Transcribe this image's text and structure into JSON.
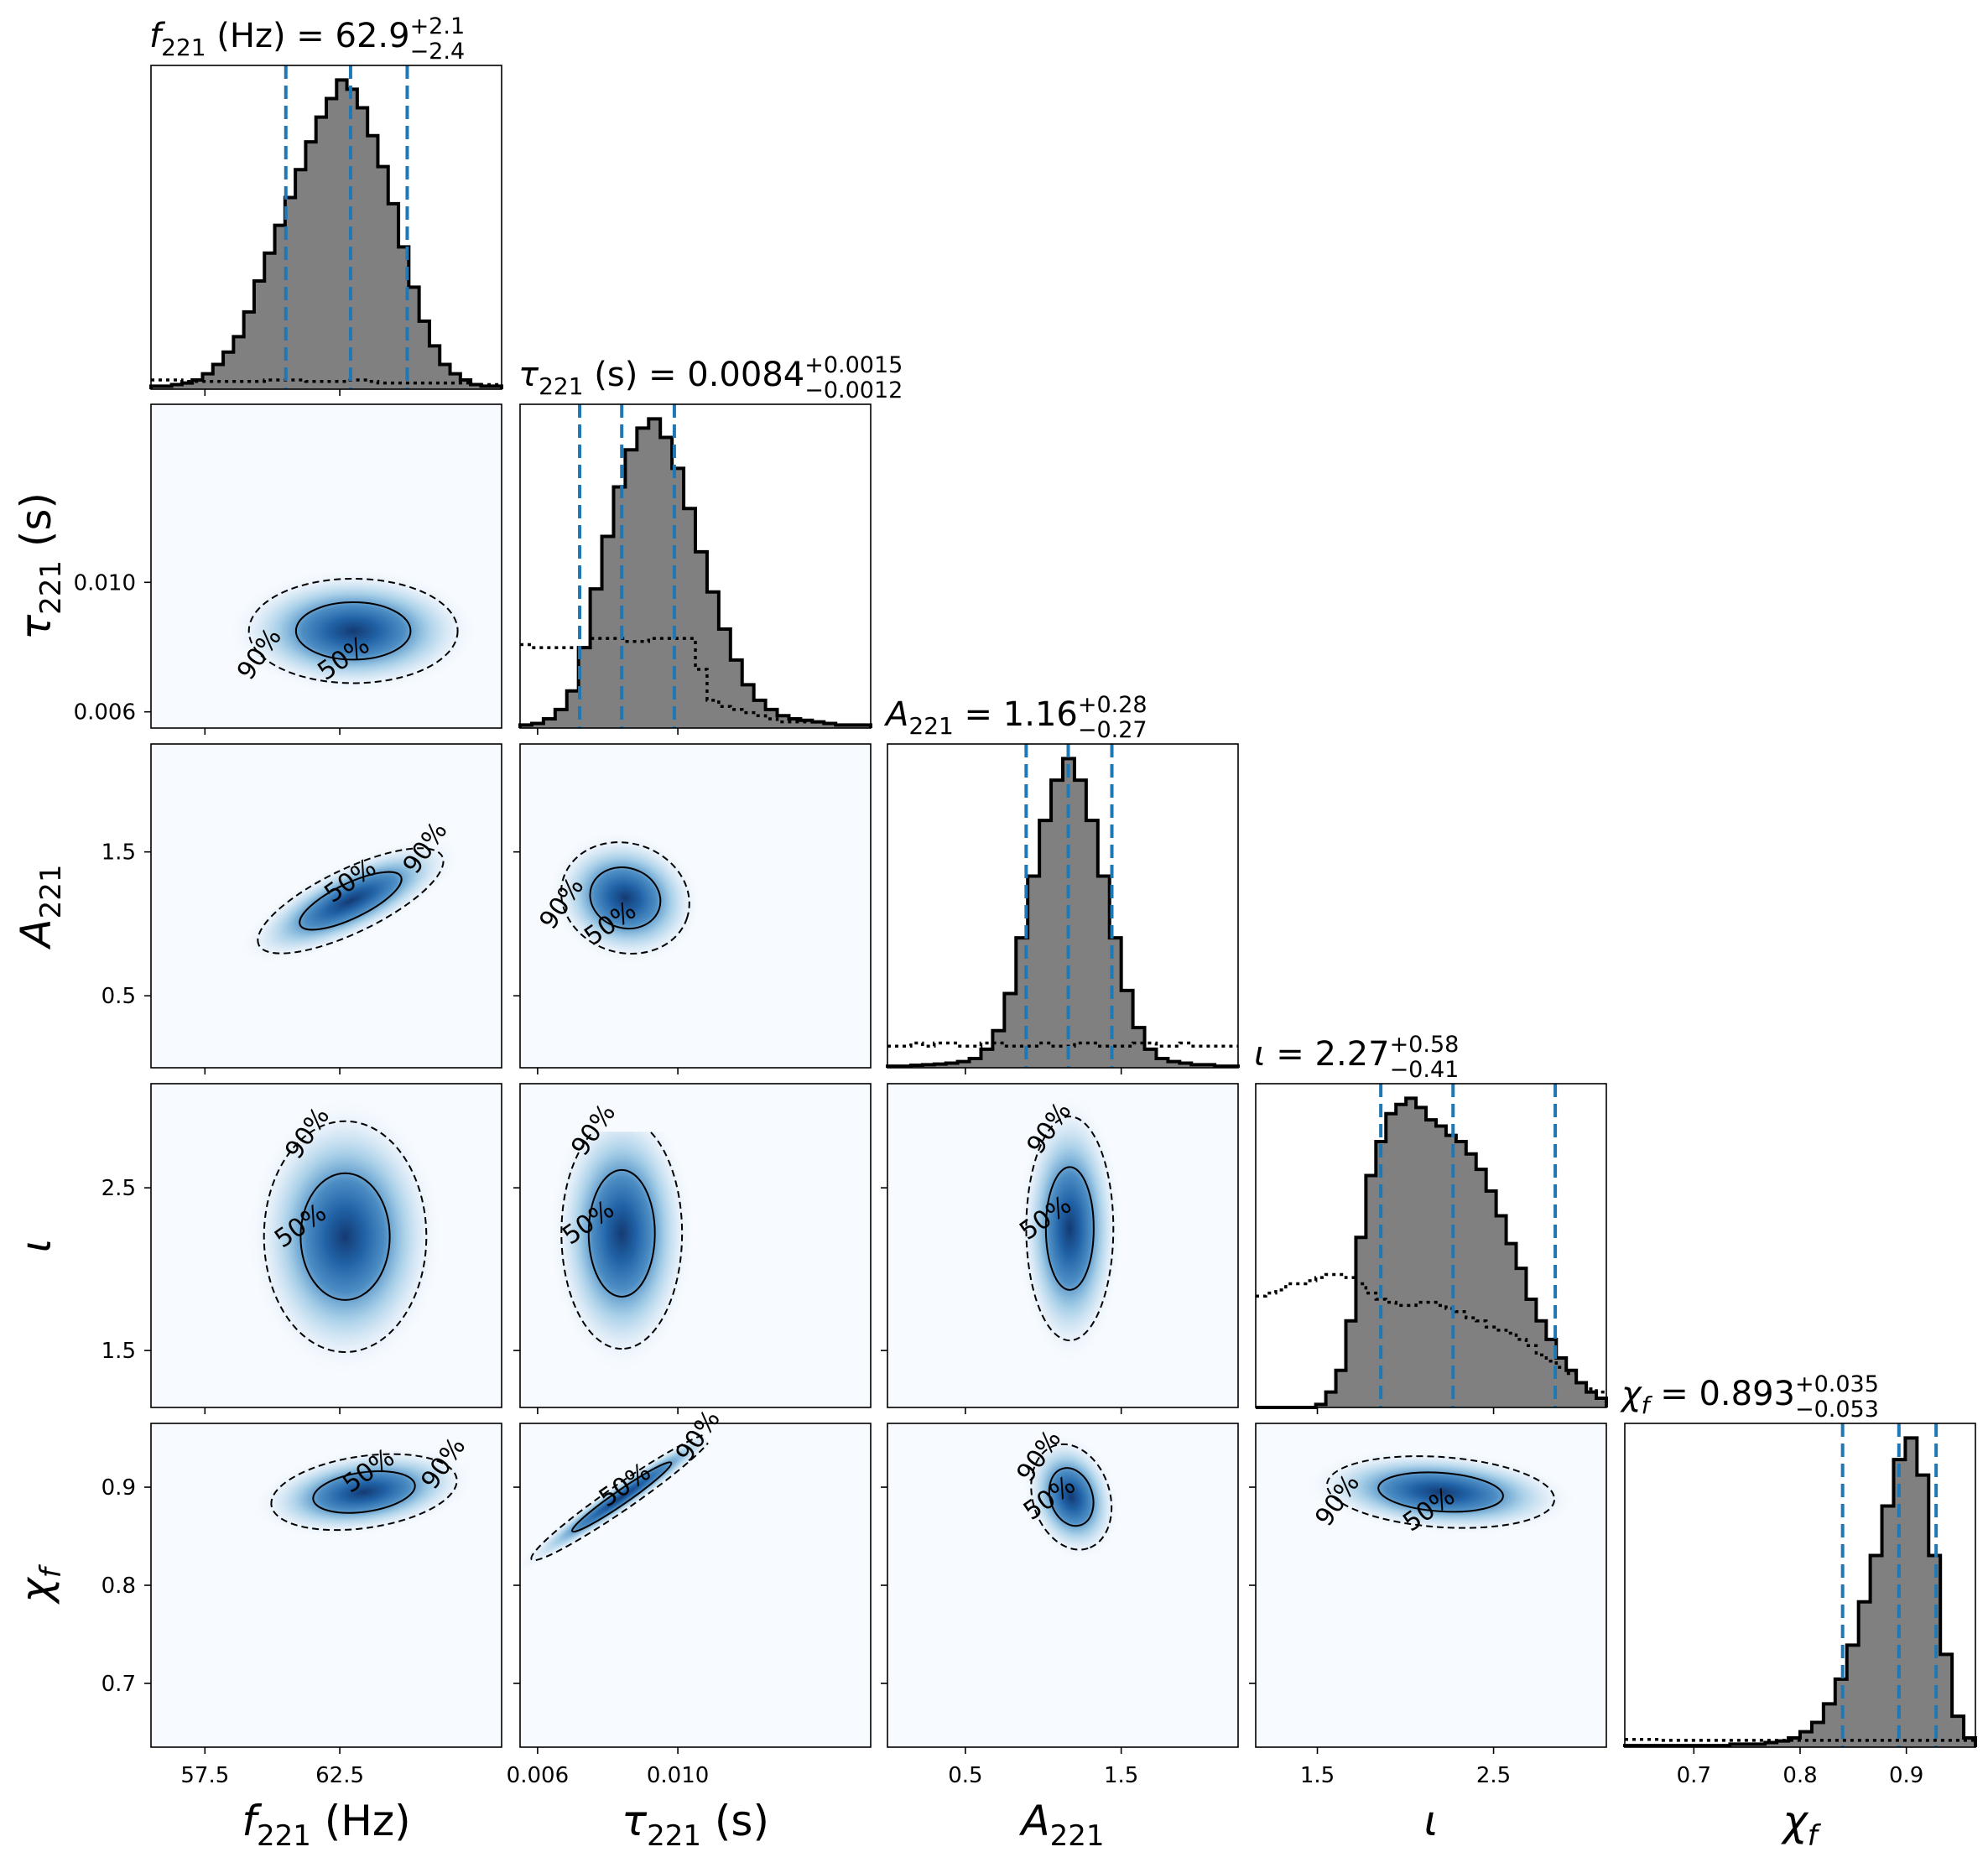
{
  "chart_data": {
    "type": "corner",
    "parameters": [
      {
        "name": "f221 (Hz)",
        "label_main": "f",
        "label_sub": "221",
        "label_suffix": " (Hz)",
        "title_prefix": "f",
        "title_sub": "221",
        "title_suffix": " (Hz) = ",
        "median": "62.9",
        "plus": "+2.1",
        "minus": "−2.4",
        "range": [
          55.5,
          68.5
        ],
        "ticks": [
          57.5,
          62.5
        ],
        "tick_labels": [
          "57.5",
          "62.5"
        ],
        "quantiles": [
          60.5,
          62.9,
          65.0
        ],
        "posterior": [
          0.01,
          0.01,
          0.015,
          0.02,
          0.03,
          0.05,
          0.08,
          0.12,
          0.17,
          0.25,
          0.35,
          0.44,
          0.53,
          0.62,
          0.71,
          0.8,
          0.88,
          0.94,
          1.0,
          0.97,
          0.91,
          0.82,
          0.72,
          0.6,
          0.46,
          0.33,
          0.22,
          0.14,
          0.08,
          0.05,
          0.03,
          0.015,
          0.01,
          0.01
        ],
        "prior": [
          0.03,
          0.03,
          0.03,
          0.025,
          0.025,
          0.025,
          0.025,
          0.025,
          0.025,
          0.025,
          0.025,
          0.03,
          0.03,
          0.03,
          0.03,
          0.025,
          0.025,
          0.025,
          0.025,
          0.03,
          0.03,
          0.025,
          0.02,
          0.02,
          0.02,
          0.02,
          0.02,
          0.02,
          0.02,
          0.02,
          0.02,
          0.015,
          0.015,
          0.015
        ]
      },
      {
        "name": "tau221 (s)",
        "label_main": "τ",
        "label_sub": "221",
        "label_suffix": " (s)",
        "title_prefix": "τ",
        "title_sub": "221",
        "title_suffix": " (s) = ",
        "median": "0.0084",
        "plus": "+0.0015",
        "minus": "−0.0012",
        "range": [
          0.0055,
          0.0155
        ],
        "ticks": [
          0.006,
          0.01
        ],
        "tick_labels": [
          "0.006",
          "0.010"
        ],
        "quantiles": [
          0.0072,
          0.0084,
          0.0099
        ],
        "posterior": [
          0.01,
          0.015,
          0.03,
          0.06,
          0.12,
          0.26,
          0.45,
          0.62,
          0.78,
          0.9,
          0.97,
          1.0,
          0.94,
          0.84,
          0.71,
          0.57,
          0.44,
          0.32,
          0.22,
          0.14,
          0.09,
          0.06,
          0.04,
          0.03,
          0.025,
          0.02,
          0.015,
          0.01,
          0.01,
          0.01
        ],
        "prior": [
          0.27,
          0.26,
          0.26,
          0.26,
          0.26,
          0.26,
          0.29,
          0.29,
          0.29,
          0.28,
          0.28,
          0.29,
          0.29,
          0.29,
          0.29,
          0.19,
          0.09,
          0.07,
          0.06,
          0.05,
          0.04,
          0.03,
          0.02,
          0.02,
          0.02,
          0.02,
          0.015,
          0.01,
          0.01,
          0.01
        ]
      },
      {
        "name": "A221",
        "label_main": "A",
        "label_sub": "221",
        "label_suffix": "",
        "title_prefix": "A",
        "title_sub": "221",
        "title_suffix": " = ",
        "median": "1.16",
        "plus": "+0.28",
        "minus": "−0.27",
        "range": [
          0.0,
          2.25
        ],
        "ticks": [
          0.5,
          1.5
        ],
        "tick_labels": [
          "0.5",
          "1.5"
        ],
        "quantiles": [
          0.89,
          1.16,
          1.44
        ],
        "posterior": [
          0.005,
          0.005,
          0.008,
          0.01,
          0.012,
          0.015,
          0.02,
          0.03,
          0.06,
          0.12,
          0.24,
          0.42,
          0.62,
          0.8,
          0.93,
          1.0,
          0.93,
          0.8,
          0.62,
          0.42,
          0.25,
          0.13,
          0.06,
          0.03,
          0.02,
          0.015,
          0.01,
          0.01,
          0.005,
          0.005
        ],
        "prior": [
          0.07,
          0.07,
          0.08,
          0.07,
          0.08,
          0.08,
          0.07,
          0.07,
          0.08,
          0.08,
          0.07,
          0.07,
          0.07,
          0.08,
          0.07,
          0.07,
          0.08,
          0.08,
          0.07,
          0.07,
          0.07,
          0.08,
          0.08,
          0.07,
          0.07,
          0.08,
          0.07,
          0.07,
          0.07,
          0.07
        ]
      },
      {
        "name": "iota",
        "label_main": "ι",
        "label_sub": "",
        "label_suffix": "",
        "title_prefix": "ι",
        "title_sub": "",
        "title_suffix": " = ",
        "median": "2.27",
        "plus": "+0.58",
        "minus": "−0.41",
        "range": [
          1.15,
          3.14
        ],
        "ticks": [
          1.5,
          2.5
        ],
        "tick_labels": [
          "1.5",
          "2.5"
        ],
        "quantiles": [
          1.86,
          2.27,
          2.85
        ],
        "posterior": [
          0.0,
          0.0,
          0.0,
          0.0,
          0.0,
          0.0,
          0.01,
          0.05,
          0.12,
          0.28,
          0.55,
          0.75,
          0.86,
          0.95,
          0.98,
          1.0,
          0.97,
          0.93,
          0.91,
          0.88,
          0.86,
          0.82,
          0.77,
          0.7,
          0.62,
          0.53,
          0.45,
          0.35,
          0.28,
          0.22,
          0.16,
          0.12,
          0.08,
          0.05,
          0.03
        ],
        "prior": [
          0.36,
          0.37,
          0.38,
          0.4,
          0.4,
          0.41,
          0.42,
          0.43,
          0.43,
          0.42,
          0.4,
          0.37,
          0.35,
          0.34,
          0.33,
          0.33,
          0.34,
          0.34,
          0.33,
          0.32,
          0.31,
          0.29,
          0.28,
          0.26,
          0.25,
          0.24,
          0.22,
          0.2,
          0.17,
          0.15,
          0.13,
          0.11,
          0.08,
          0.06,
          0.05
        ]
      },
      {
        "name": "chi_f",
        "label_main": "χ",
        "label_sub": "f",
        "label_suffix": "",
        "title_prefix": "χ",
        "title_sub": "f",
        "title_suffix": " = ",
        "median": "0.893",
        "plus": "+0.035",
        "minus": "−0.053",
        "range": [
          0.635,
          0.965
        ],
        "ticks": [
          0.7,
          0.8,
          0.9
        ],
        "tick_labels": [
          "0.7",
          "0.8",
          "0.9"
        ],
        "quantiles": [
          0.84,
          0.893,
          0.928
        ],
        "posterior": [
          0.005,
          0.005,
          0.005,
          0.005,
          0.005,
          0.005,
          0.005,
          0.005,
          0.005,
          0.01,
          0.01,
          0.01,
          0.015,
          0.02,
          0.03,
          0.05,
          0.08,
          0.14,
          0.22,
          0.33,
          0.47,
          0.62,
          0.78,
          0.93,
          1.0,
          0.88,
          0.62,
          0.3,
          0.1,
          0.03
        ],
        "prior": [
          0.025,
          0.025,
          0.025,
          0.022,
          0.022,
          0.022,
          0.022,
          0.022,
          0.022,
          0.022,
          0.022,
          0.022,
          0.022,
          0.022,
          0.022,
          0.022,
          0.022,
          0.022,
          0.022,
          0.022,
          0.022,
          0.022,
          0.022,
          0.022,
          0.022,
          0.022,
          0.022,
          0.022,
          0.022,
          0.022
        ]
      }
    ],
    "pairs": [
      {
        "row": 1,
        "col": 0,
        "cx": 63.0,
        "cy": 0.0085,
        "sx": 1.8,
        "sy": 0.00075,
        "rho": 0.0,
        "c50_label": "50%",
        "c90_label": "90%"
      },
      {
        "row": 2,
        "col": 0,
        "cx": 62.9,
        "cy": 1.16,
        "sx": 1.6,
        "sy": 0.17,
        "rho": 0.75,
        "c50_label": "50%",
        "c90_label": "90%"
      },
      {
        "row": 2,
        "col": 1,
        "cx": 0.0085,
        "cy": 1.18,
        "sx": 0.00085,
        "sy": 0.18,
        "rho": -0.1,
        "c50_label": "50%",
        "c90_label": "90%"
      },
      {
        "row": 3,
        "col": 0,
        "cx": 62.7,
        "cy": 2.2,
        "sx": 1.4,
        "sy": 0.33,
        "rho": 0.0,
        "c50_label": "50%",
        "c90_label": "90%"
      },
      {
        "row": 3,
        "col": 1,
        "cx": 0.0084,
        "cy": 2.22,
        "sx": 0.0008,
        "sy": 0.33,
        "rho": 0.0,
        "c50_label": "50%",
        "c90_label": "90%"
      },
      {
        "row": 3,
        "col": 2,
        "cx": 1.17,
        "cy": 2.25,
        "sx": 0.13,
        "sy": 0.32,
        "rho": 0.0,
        "c50_label": "50%",
        "c90_label": "90%"
      },
      {
        "row": 4,
        "col": 0,
        "cx": 63.4,
        "cy": 0.895,
        "sx": 1.6,
        "sy": 0.018,
        "rho": 0.3,
        "c50_label": "50%",
        "c90_label": "90%"
      },
      {
        "row": 4,
        "col": 1,
        "cx": 0.0084,
        "cy": 0.89,
        "sx": 0.0012,
        "sy": 0.03,
        "rho": 0.97,
        "c50_label": "50%",
        "c90_label": "90%"
      },
      {
        "row": 4,
        "col": 2,
        "cx": 1.18,
        "cy": 0.89,
        "sx": 0.12,
        "sy": 0.025,
        "rho": -0.2,
        "c50_label": "50%",
        "c90_label": "90%"
      },
      {
        "row": 4,
        "col": 3,
        "cx": 2.2,
        "cy": 0.895,
        "sx": 0.3,
        "sy": 0.017,
        "rho": -0.2,
        "c50_label": "50%",
        "c90_label": "90%"
      }
    ],
    "colors": {
      "posterior_fill": "#808080",
      "quantile_line": "#1f77b4",
      "density_dark": "#08306b",
      "density_light": "#f7fbff"
    }
  }
}
